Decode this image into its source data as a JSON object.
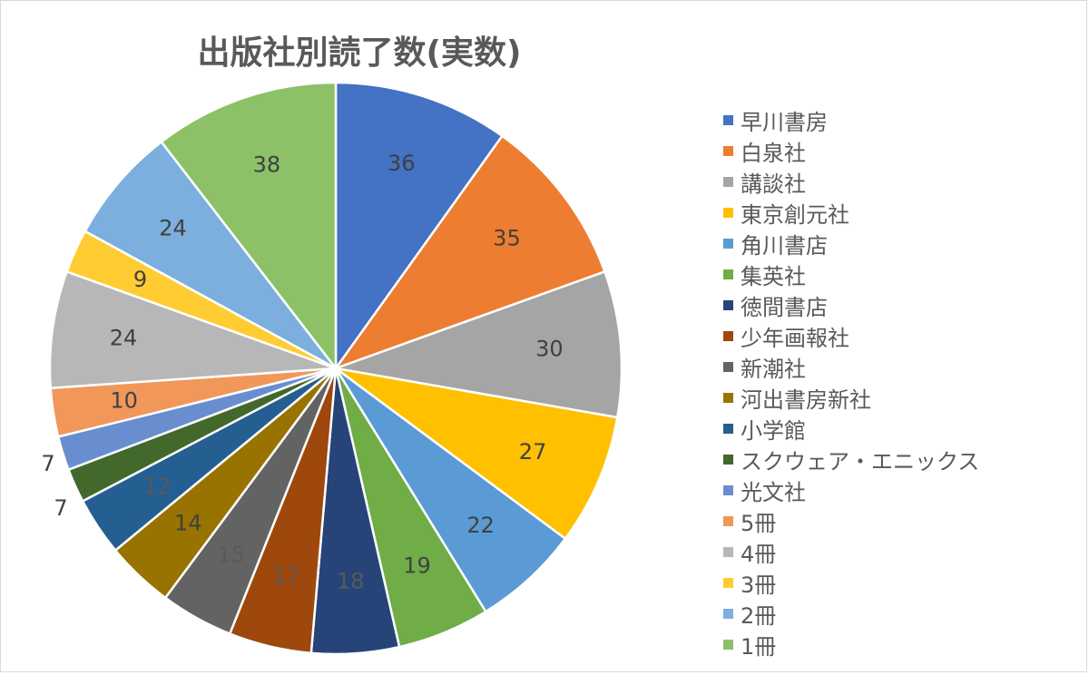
{
  "chart_data": {
    "type": "pie",
    "title": "出版社別読了数(実数)",
    "legend_position": "right",
    "categories": [
      "早川書房",
      "白泉社",
      "講談社",
      "東京創元社",
      "角川書店",
      "集英社",
      "徳間書店",
      "少年画報社",
      "新潮社",
      "河出書房新社",
      "小学館",
      "スクウェア・エニックス",
      "光文社",
      "5冊",
      "4冊",
      "3冊",
      "2冊",
      "1冊"
    ],
    "values": [
      36,
      35,
      30,
      27,
      22,
      19,
      18,
      17,
      15,
      14,
      12,
      7,
      7,
      10,
      24,
      9,
      24,
      38
    ],
    "colors": [
      "#4472c4",
      "#ed7d31",
      "#a5a5a5",
      "#ffc000",
      "#5b9bd5",
      "#70ad47",
      "#264478",
      "#9e480e",
      "#636363",
      "#997300",
      "#255e91",
      "#43682b",
      "#698ed0",
      "#f1975a",
      "#b7b7b7",
      "#ffcd33",
      "#7cafdd",
      "#8cc168"
    ]
  }
}
